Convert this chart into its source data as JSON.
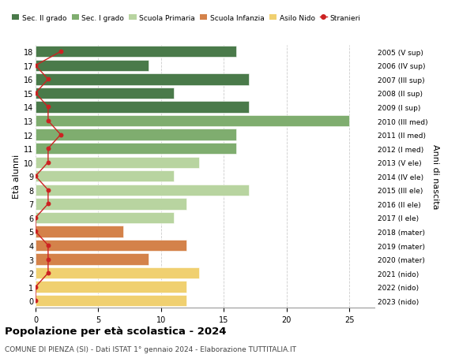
{
  "ages": [
    18,
    17,
    16,
    15,
    14,
    13,
    12,
    11,
    10,
    9,
    8,
    7,
    6,
    5,
    4,
    3,
    2,
    1,
    0
  ],
  "bar_values": [
    16,
    9,
    17,
    11,
    17,
    25,
    16,
    16,
    13,
    11,
    17,
    12,
    11,
    7,
    12,
    9,
    13,
    12,
    12
  ],
  "bar_colors": [
    "#4a7a4a",
    "#4a7a4a",
    "#4a7a4a",
    "#4a7a4a",
    "#4a7a4a",
    "#7fad6f",
    "#7fad6f",
    "#7fad6f",
    "#b8d4a0",
    "#b8d4a0",
    "#b8d4a0",
    "#b8d4a0",
    "#b8d4a0",
    "#d4824a",
    "#d4824a",
    "#d4824a",
    "#f0d070",
    "#f0d070",
    "#f0d070"
  ],
  "right_labels": [
    "2005 (V sup)",
    "2006 (IV sup)",
    "2007 (III sup)",
    "2008 (II sup)",
    "2009 (I sup)",
    "2010 (III med)",
    "2011 (II med)",
    "2012 (I med)",
    "2013 (V ele)",
    "2014 (IV ele)",
    "2015 (III ele)",
    "2016 (II ele)",
    "2017 (I ele)",
    "2018 (mater)",
    "2019 (mater)",
    "2020 (mater)",
    "2021 (nido)",
    "2022 (nido)",
    "2023 (nido)"
  ],
  "stranieri_x": [
    2,
    0,
    1,
    0,
    1,
    1,
    2,
    1,
    1,
    0,
    1,
    1,
    0,
    0,
    1,
    1,
    1,
    0,
    0
  ],
  "legend_labels": [
    "Sec. II grado",
    "Sec. I grado",
    "Scuola Primaria",
    "Scuola Infanzia",
    "Asilo Nido",
    "Stranieri"
  ],
  "legend_colors": [
    "#4a7a4a",
    "#7fad6f",
    "#b8d4a0",
    "#d4824a",
    "#f0d070",
    "#cc2222"
  ],
  "title": "Popolazione per età scolastica - 2024",
  "subtitle": "COMUNE DI PIENZA (SI) - Dati ISTAT 1° gennaio 2024 - Elaborazione TUTTITALIA.IT",
  "ylabel_left": "Età alunni",
  "ylabel_right": "Anni di nascita",
  "xlim": [
    0,
    27
  ],
  "xticks": [
    0,
    5,
    10,
    15,
    20,
    25
  ],
  "background_color": "#ffffff",
  "grid_color": "#cccccc"
}
